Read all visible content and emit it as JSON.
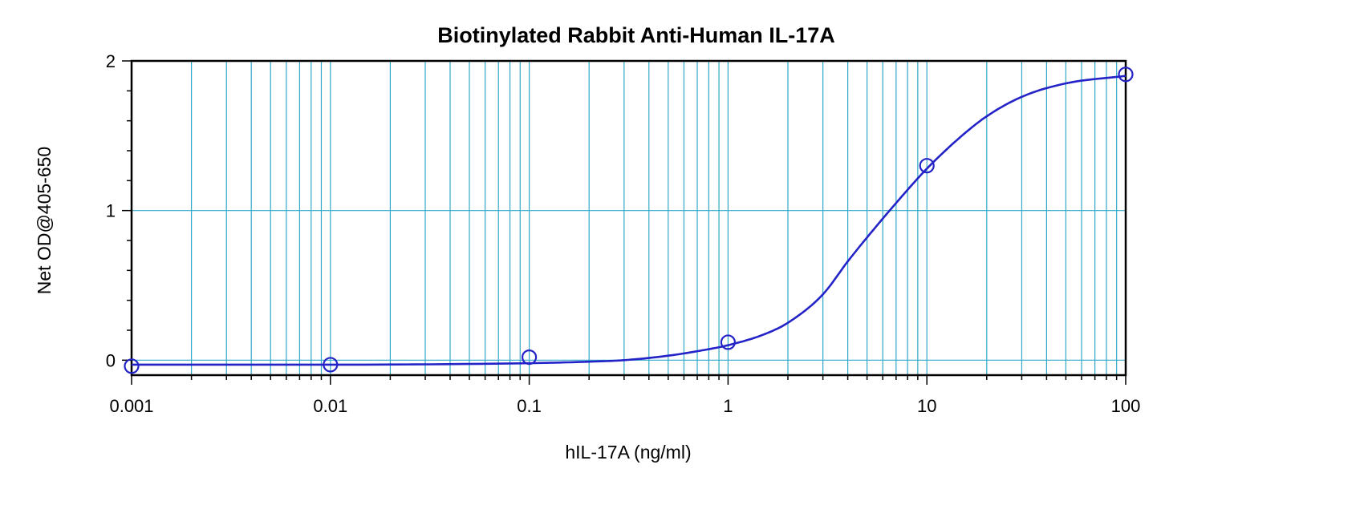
{
  "chart_data": {
    "type": "scatter",
    "title": "Biotinylated Rabbit Anti-Human IL-17A",
    "xlabel": "hIL-17A (ng/ml)",
    "ylabel": "Net OD@405-650",
    "x_scale": "log",
    "xlim": [
      0.001,
      100
    ],
    "ylim": [
      -0.1,
      2
    ],
    "x_tick_labels": [
      "0.001",
      "0.01",
      "0.1",
      "1",
      "10",
      "100"
    ],
    "y_tick_labels": [
      "0",
      "1",
      "2"
    ],
    "grid": true,
    "legend": "none",
    "points": [
      {
        "x": 0.001,
        "y": -0.04
      },
      {
        "x": 0.01,
        "y": -0.03
      },
      {
        "x": 0.1,
        "y": 0.02
      },
      {
        "x": 1,
        "y": 0.12
      },
      {
        "x": 10,
        "y": 1.3
      },
      {
        "x": 100,
        "y": 1.91
      }
    ],
    "fit_curve": [
      {
        "x": 0.001,
        "y": -0.03
      },
      {
        "x": 0.01,
        "y": -0.03
      },
      {
        "x": 0.1,
        "y": -0.02
      },
      {
        "x": 0.2,
        "y": -0.01
      },
      {
        "x": 0.3,
        "y": 0.0
      },
      {
        "x": 0.5,
        "y": 0.03
      },
      {
        "x": 0.7,
        "y": 0.06
      },
      {
        "x": 1,
        "y": 0.1
      },
      {
        "x": 1.5,
        "y": 0.17
      },
      {
        "x": 2,
        "y": 0.25
      },
      {
        "x": 3,
        "y": 0.44
      },
      {
        "x": 4,
        "y": 0.66
      },
      {
        "x": 5,
        "y": 0.82
      },
      {
        "x": 7,
        "y": 1.05
      },
      {
        "x": 10,
        "y": 1.28
      },
      {
        "x": 15,
        "y": 1.5
      },
      {
        "x": 20,
        "y": 1.63
      },
      {
        "x": 30,
        "y": 1.76
      },
      {
        "x": 50,
        "y": 1.85
      },
      {
        "x": 100,
        "y": 1.9
      }
    ],
    "colors": {
      "marker": "#2323c8",
      "curve": "#2323c8",
      "grid": "#30a8c8",
      "axis": "#000000",
      "frame": "#000000"
    }
  }
}
